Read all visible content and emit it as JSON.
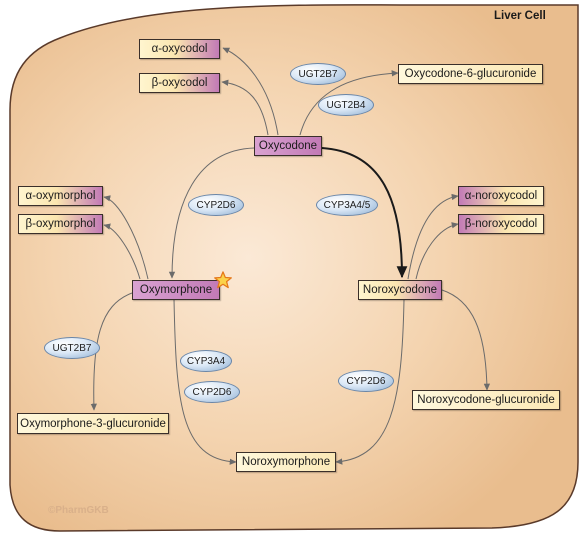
{
  "title": "Liver Cell",
  "credit": "©PharmGKB",
  "colors": {
    "cell_fill": "#f0c9a0",
    "cell_border": "#5a3a2a",
    "arrow": "#6b6b6b",
    "major_arrow": "#1a1a1a",
    "metabolite_purple": "#c27ab6",
    "metabolite_cream": "#fbe6b0",
    "enzyme_blue": "#bcd3ec",
    "star": "#f7a51c"
  },
  "metabolites": {
    "alpha_oxycodol": "α-oxycodol",
    "beta_oxycodol": "β-oxycodol",
    "oxycodone_6_glucuronide": "Oxycodone-6-glucuronide",
    "oxycodone": "Oxycodone",
    "alpha_oxymorphol": "α-oxymorphol",
    "beta_oxymorphol": "β-oxymorphol",
    "oxymorphone": "Oxymorphone",
    "alpha_noroxycodol": "α-noroxycodol",
    "beta_noroxycodol": "β-noroxycodol",
    "noroxycodone": "Noroxycodone",
    "oxymorphone_3_glucuronide": "Oxymorphone-3-glucuronide",
    "noroxycodone_glucuronide": "Noroxycodone-glucuronide",
    "noroxymorphone": "Noroxymorphone"
  },
  "enzymes": {
    "ugt2b7_top": "UGT2B7",
    "ugt2b4": "UGT2B4",
    "cyp2d6_left": "CYP2D6",
    "cyp3a4_5": "CYP3A4/5",
    "ugt2b7_left": "UGT2B7",
    "cyp3a4": "CYP3A4",
    "cyp2d6_middle": "CYP2D6",
    "cyp2d6_right": "CYP2D6"
  },
  "icons": {
    "active_metabolite": "star-icon"
  }
}
